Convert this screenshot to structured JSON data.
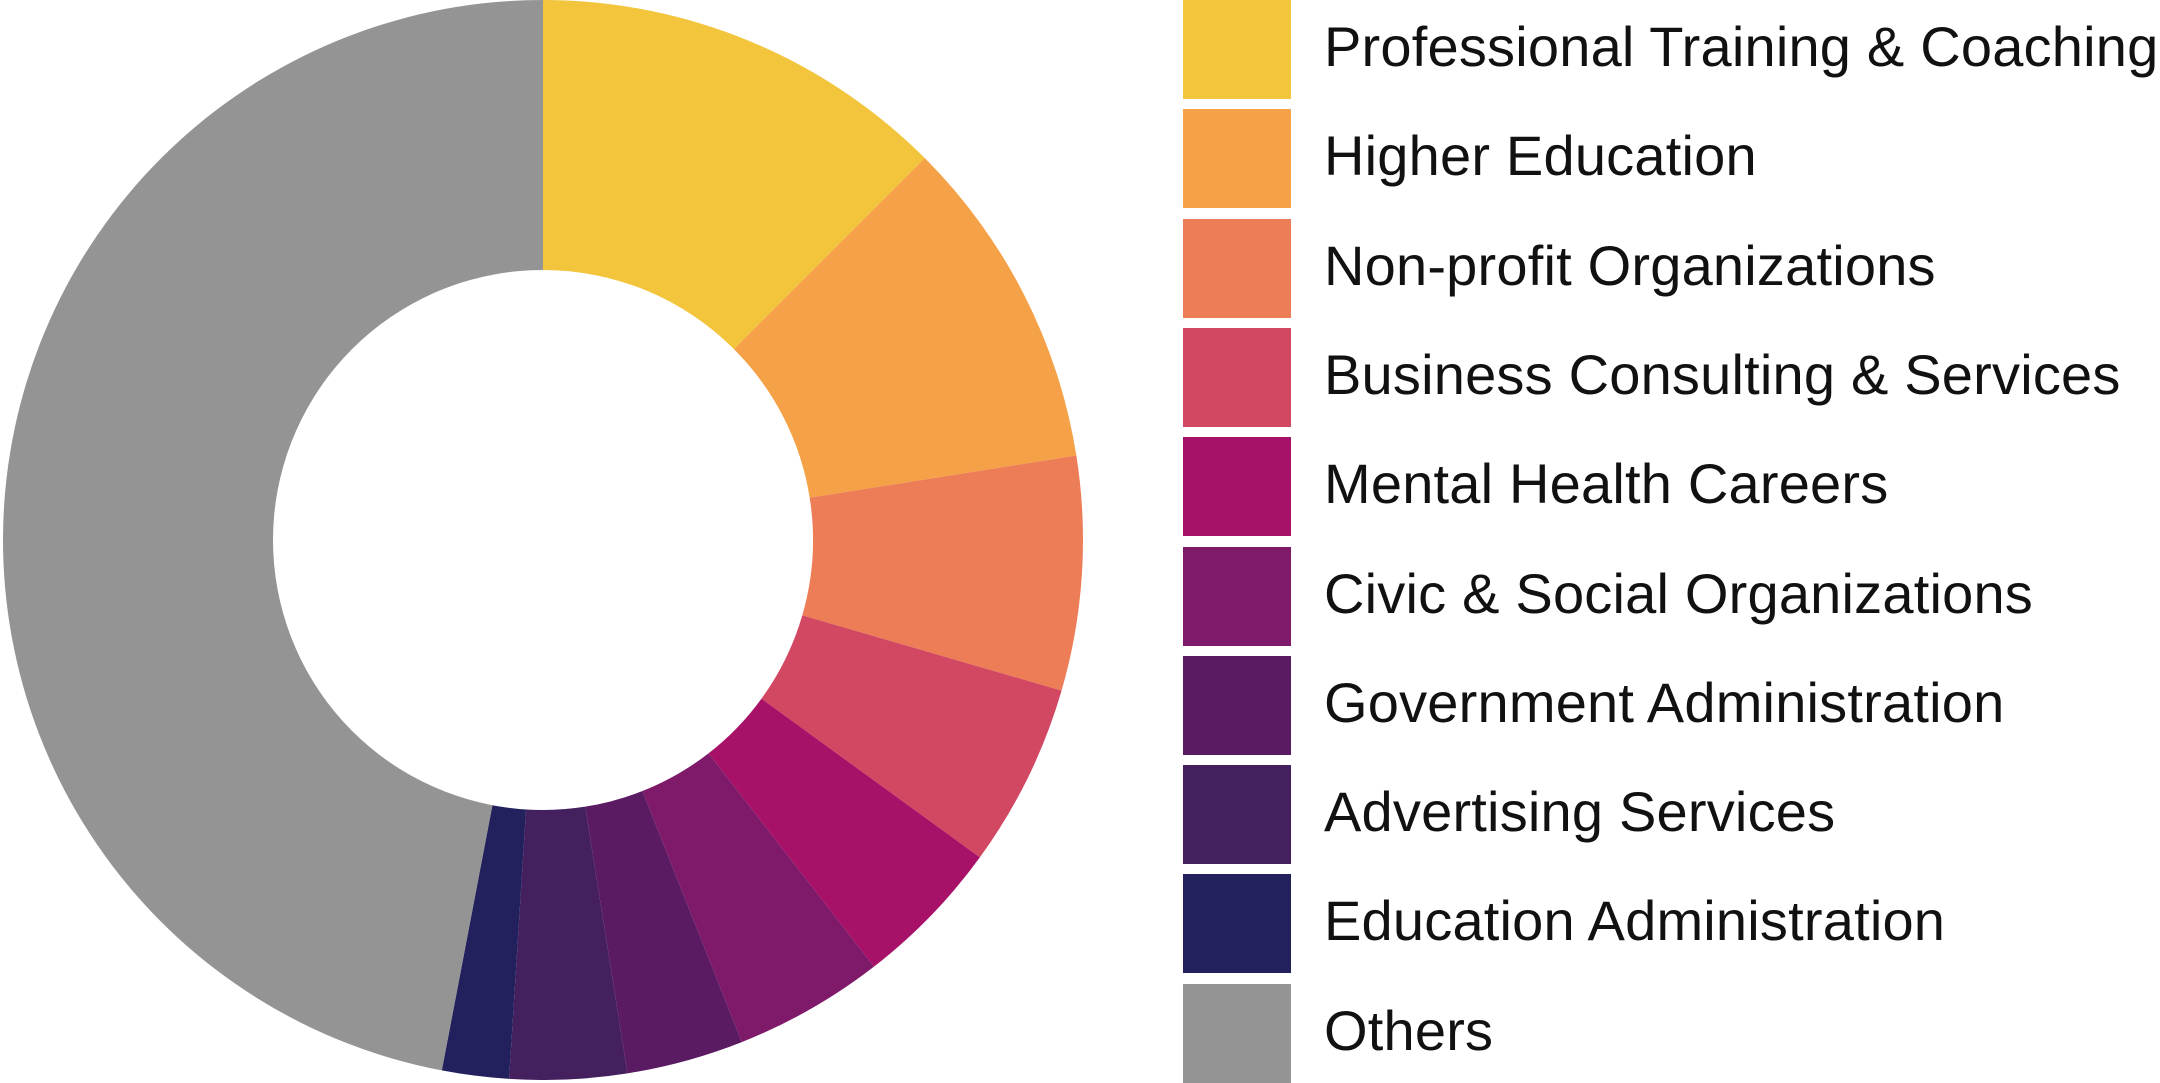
{
  "chart_data": {
    "type": "pie",
    "variant": "donut",
    "title": "",
    "categories": [
      "Professional Training & Coaching",
      "Higher Education",
      "Non-profit Organizations",
      "Business Consulting & Services",
      "Mental Health Careers",
      "Civic & Social Organizations",
      "Government Administration",
      "Advertising Services",
      "Education Administration",
      "Others"
    ],
    "values": [
      12.5,
      10.0,
      7.0,
      5.5,
      4.5,
      4.5,
      3.5,
      3.5,
      2.0,
      47.0
    ],
    "unit": "%",
    "colors": [
      "#F2C53D",
      "#F5A147",
      "#EC7D56",
      "#D24761",
      "#A81168",
      "#7F1A6A",
      "#5B1B63",
      "#45205F",
      "#23215D",
      "#949494"
    ],
    "legend_position": "right",
    "start_angle": "12 o'clock",
    "direction": "clockwise"
  }
}
